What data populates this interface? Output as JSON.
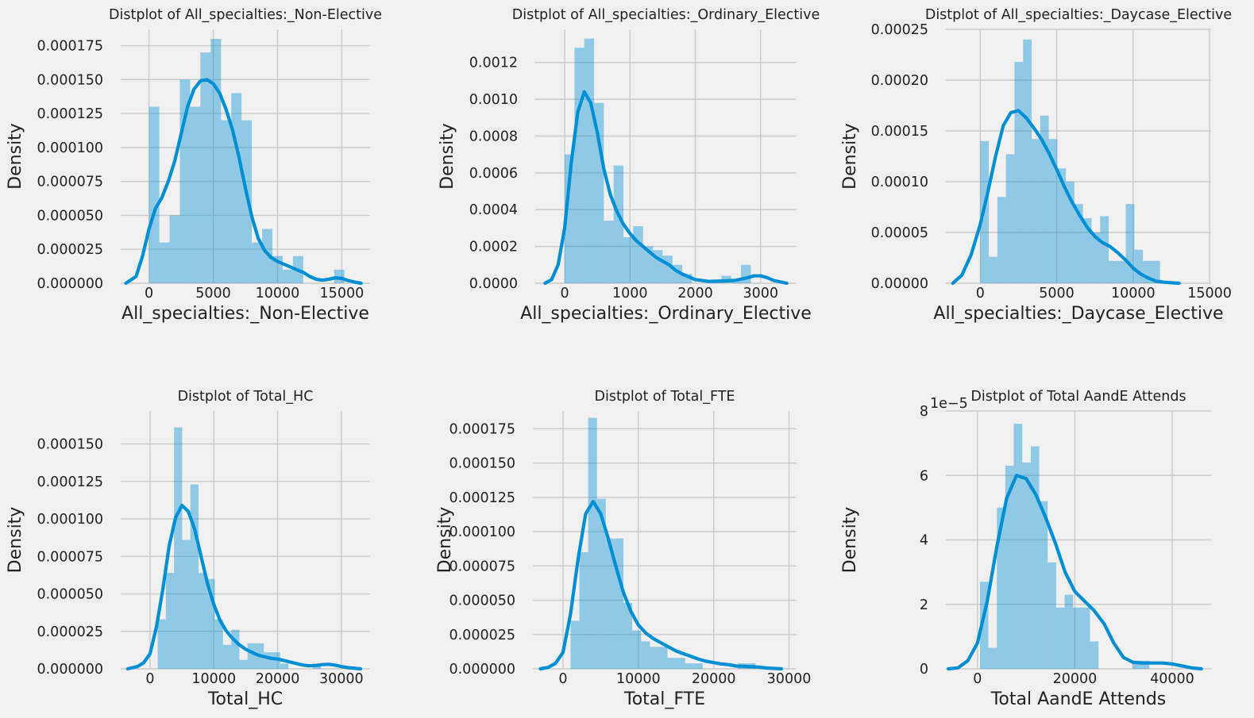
{
  "chart_data": [
    {
      "type": "histogram",
      "title": "Distplot of All_specialties:_Non-Elective",
      "xlabel": "All_specialties:_Non-Elective",
      "ylabel": "Density",
      "xlim": [
        -2200,
        17200
      ],
      "ylim": [
        0,
        0.000187
      ],
      "xticks": [
        0,
        5000,
        10000,
        15000
      ],
      "xtick_labels": [
        "0",
        "5000",
        "10000",
        "15000"
      ],
      "yticks": [
        0,
        2.5e-05,
        5e-05,
        7.5e-05,
        0.0001,
        0.000125,
        0.00015,
        0.000175
      ],
      "ytick_labels": [
        "0.000000",
        "0.000025",
        "0.000050",
        "0.000075",
        "0.000100",
        "0.000125",
        "0.000150",
        "0.000175"
      ],
      "y_offset_label": "",
      "bin_start": 0,
      "bin_width": 800,
      "values": [
        0.00013,
        3e-05,
        5e-05,
        0.00015,
        0.00013,
        0.00017,
        0.00018,
        0.00012,
        0.00014,
        0.00012,
        3e-05,
        4e-05,
        2e-05,
        1e-05,
        2e-05,
        0,
        0,
        0,
        1e-05
      ],
      "kde_x": [
        -1800,
        -1000,
        -500,
        0,
        500,
        1000,
        1500,
        2000,
        2500,
        3000,
        3500,
        4000,
        4500,
        5000,
        5500,
        6000,
        6500,
        7000,
        7500,
        8000,
        8500,
        9000,
        9500,
        10000,
        10500,
        11000,
        11500,
        12000,
        12500,
        13000,
        13500,
        14000,
        14500,
        15000,
        15500,
        16000,
        16500
      ],
      "kde_y": [
        0,
        5e-06,
        2e-05,
        4e-05,
        5.5e-05,
        6.3e-05,
        7.5e-05,
        9e-05,
        0.00011,
        0.00013,
        0.000143,
        0.000149,
        0.00015,
        0.000147,
        0.00014,
        0.000128,
        0.000113,
        9.3e-05,
        7e-05,
        4.9e-05,
        3.3e-05,
        2.4e-05,
        1.9e-05,
        1.6e-05,
        1.4e-05,
        1.2e-05,
        1e-05,
        8e-06,
        5e-06,
        3e-06,
        2.2e-06,
        3e-06,
        4e-06,
        3.5e-06,
        2e-06,
        8e-07,
        0
      ]
    },
    {
      "type": "histogram",
      "title": "Distplot of All_specialties:_Ordinary_Elective",
      "xlabel": "All_specialties:_Ordinary_Elective",
      "ylabel": "Density",
      "xlim": [
        -450,
        3550
      ],
      "ylim": [
        0,
        0.00138
      ],
      "xticks": [
        0,
        1000,
        2000,
        3000
      ],
      "xtick_labels": [
        "0",
        "1000",
        "2000",
        "3000"
      ],
      "yticks": [
        0,
        0.0002,
        0.0004,
        0.0006,
        0.0008,
        0.001,
        0.0012
      ],
      "ytick_labels": [
        "0.0000",
        "0.0002",
        "0.0004",
        "0.0006",
        "0.0008",
        "0.0010",
        "0.0012"
      ],
      "y_offset_label": "",
      "bin_start": 0,
      "bin_width": 150,
      "values": [
        0.0007,
        0.00128,
        0.00133,
        0.00098,
        0.00034,
        0.00064,
        0.00025,
        0.00031,
        0.0002,
        0.00018,
        0.00015,
        0.0001,
        5e-05,
        0,
        0,
        2e-05,
        4e-05,
        2e-05,
        0.0001
      ],
      "kde_x": [
        -300,
        -200,
        -100,
        0,
        100,
        200,
        300,
        400,
        500,
        600,
        700,
        800,
        900,
        1000,
        1100,
        1200,
        1300,
        1400,
        1500,
        1600,
        1700,
        1800,
        1900,
        2000,
        2200,
        2400,
        2600,
        2800,
        2900,
        3000,
        3100,
        3200,
        3400
      ],
      "kde_y": [
        0,
        2e-05,
        0.0001,
        0.0003,
        0.00065,
        0.00093,
        0.00104,
        0.00098,
        0.00082,
        0.00062,
        0.00048,
        0.00039,
        0.00032,
        0.00027,
        0.00023,
        0.0002,
        0.00017,
        0.00014,
        0.00012,
        0.0001,
        7e-05,
        5e-05,
        3.5e-05,
        2e-05,
        1e-05,
        1.2e-05,
        1.5e-05,
        3e-05,
        4e-05,
        4e-05,
        3e-05,
        1.5e-05,
        0
      ]
    },
    {
      "type": "histogram",
      "title": "Distplot of All_specialties:_Daycase_Elective",
      "xlabel": "All_specialties:_Daycase_Elective",
      "ylabel": "Density",
      "xlim": [
        -2250,
        15100
      ],
      "ylim": [
        0,
        0.00025
      ],
      "xticks": [
        0,
        5000,
        10000,
        15000
      ],
      "xtick_labels": [
        "0",
        "5000",
        "10000",
        "15000"
      ],
      "yticks": [
        0,
        5e-05,
        0.0001,
        0.00015,
        0.0002,
        0.00025
      ],
      "ytick_labels": [
        "0.00000",
        "0.00005",
        "0.00010",
        "0.00015",
        "0.00020",
        "0.00025"
      ],
      "y_offset_label": "",
      "bin_start": 0,
      "bin_width": 560,
      "values": [
        0.00014,
        2.6e-05,
        8.5e-05,
        0.000127,
        0.000218,
        0.00024,
        0.000142,
        0.000165,
        0.000142,
        0.000113,
        0.0001,
        7.8e-05,
        6.4e-05,
        5e-05,
        6.6e-05,
        2.2e-05,
        2.2e-05,
        7.8e-05,
        3.3e-05,
        2.2e-05,
        2.2e-05
      ],
      "kde_x": [
        -1800,
        -1200,
        -600,
        0,
        500,
        1000,
        1500,
        2000,
        2500,
        3000,
        3500,
        4000,
        4500,
        5000,
        5500,
        6000,
        6500,
        7000,
        7500,
        8000,
        8500,
        9000,
        9500,
        10000,
        10500,
        11000,
        11500,
        12000,
        13000
      ],
      "kde_y": [
        0,
        8e-06,
        2.8e-05,
        5.8e-05,
        9e-05,
        0.000125,
        0.000155,
        0.000168,
        0.00017,
        0.000163,
        0.000153,
        0.000142,
        0.000128,
        0.000112,
        9.5e-05,
        8e-05,
        6.7e-05,
        5.5e-05,
        4.6e-05,
        4e-05,
        3.6e-05,
        3e-05,
        2.3e-05,
        1.5e-05,
        9e-06,
        5e-06,
        2e-06,
        1e-06,
        0
      ]
    },
    {
      "type": "histogram",
      "title": "Distplot of Total_HC",
      "xlabel": "Total_HC",
      "ylabel": "Density",
      "xlim": [
        -4600,
        34500
      ],
      "ylim": [
        0,
        0.000172
      ],
      "xticks": [
        0,
        10000,
        20000,
        30000
      ],
      "xtick_labels": [
        "0",
        "10000",
        "20000",
        "30000"
      ],
      "yticks": [
        0,
        2.5e-05,
        5e-05,
        7.5e-05,
        0.0001,
        0.000125,
        0.00015
      ],
      "ytick_labels": [
        "0.000000",
        "0.000025",
        "0.000050",
        "0.000075",
        "0.000100",
        "0.000125",
        "0.000150"
      ],
      "y_offset_label": "",
      "bin_start": 1200,
      "bin_width": 1280,
      "values": [
        3.3e-05,
        6.4e-05,
        0.000161,
        8.6e-05,
        0.000123,
        6.4e-05,
        6e-05,
        3.3e-05,
        1.6e-05,
        2.6e-05,
        6e-06,
        1.7e-05,
        1.7e-05,
        1.1e-05,
        1.1e-05,
        3.5e-06,
        0,
        0,
        0,
        3.5e-06
      ],
      "kde_x": [
        -3500,
        -2000,
        -1000,
        0,
        1000,
        2000,
        3000,
        4000,
        5000,
        6000,
        7000,
        8000,
        9000,
        10000,
        11000,
        12000,
        13000,
        14000,
        15000,
        16000,
        17000,
        18000,
        19000,
        20000,
        21000,
        22000,
        23000,
        24000,
        25000,
        26000,
        27000,
        28000,
        29000,
        30000,
        31000,
        33000
      ],
      "kde_y": [
        0,
        1.5e-06,
        4e-06,
        1e-05,
        2.8e-05,
        5.3e-05,
        8.2e-05,
        0.000101,
        0.000109,
        0.000105,
        9.3e-05,
        7.5e-05,
        5.7e-05,
        4.3e-05,
        3.2e-05,
        2.5e-05,
        2e-05,
        1.6e-05,
        1.3e-05,
        1.1e-05,
        9e-06,
        8e-06,
        7e-06,
        6.5e-06,
        5.5e-06,
        4.5e-06,
        3.5e-06,
        2.5e-06,
        2e-06,
        2.2e-06,
        2.8e-06,
        3e-06,
        2.5e-06,
        1.5e-06,
        8e-07,
        0
      ]
    },
    {
      "type": "histogram",
      "title": "Distplot of Total_FTE",
      "xlabel": "Total_FTE",
      "ylabel": "Density",
      "xlim": [
        -4000,
        31000
      ],
      "ylim": [
        0,
        0.000188
      ],
      "xticks": [
        0,
        10000,
        20000,
        30000
      ],
      "xtick_labels": [
        "0",
        "10000",
        "20000",
        "30000"
      ],
      "yticks": [
        0,
        2.5e-05,
        5e-05,
        7.5e-05,
        0.0001,
        0.000125,
        0.00015,
        0.000175
      ],
      "ytick_labels": [
        "0.000000",
        "0.000025",
        "0.000050",
        "0.000075",
        "0.000100",
        "0.000125",
        "0.000150",
        "0.000175"
      ],
      "y_offset_label": "",
      "bin_start": 1000,
      "bin_width": 1170,
      "values": [
        3.5e-05,
        8.5e-05,
        0.000183,
        0.000124,
        9.5e-05,
        9.5e-05,
        4.8e-05,
        2.8e-05,
        2e-05,
        1.6e-05,
        1.6e-05,
        8e-06,
        8e-06,
        4e-06,
        4e-06,
        0,
        0,
        0,
        0,
        4e-06,
        4e-06
      ],
      "kde_x": [
        -3000,
        -2000,
        -1000,
        0,
        1000,
        2000,
        3000,
        4000,
        5000,
        6000,
        7000,
        8000,
        9000,
        10000,
        11000,
        12000,
        13000,
        14000,
        15000,
        16000,
        17000,
        18000,
        19000,
        20000,
        21000,
        22000,
        23000,
        24000,
        25000,
        26000,
        27000,
        29000
      ],
      "kde_y": [
        0,
        1e-06,
        4e-06,
        1.2e-05,
        4e-05,
        8e-05,
        0.000113,
        0.000122,
        0.000113,
        9.5e-05,
        7.5e-05,
        5.6e-05,
        4.2e-05,
        3.2e-05,
        2.6e-05,
        2.2e-05,
        1.9e-05,
        1.6e-05,
        1.3e-05,
        1.1e-05,
        9e-06,
        7e-06,
        5.5e-06,
        4.5e-06,
        3.5e-06,
        3e-06,
        2e-06,
        1.8e-06,
        1.5e-06,
        1.2e-06,
        6e-07,
        0
      ]
    },
    {
      "type": "histogram",
      "title": "Distplot of Total AandE Attends",
      "xlabel": "Total AandE Attends",
      "ylabel": "Density",
      "xlim": [
        -6500,
        48000
      ],
      "ylim": [
        0,
        8e-05
      ],
      "xticks": [
        0,
        20000,
        40000
      ],
      "xtick_labels": [
        "0",
        "20000",
        "40000"
      ],
      "yticks": [
        0,
        2e-05,
        4e-05,
        6e-05,
        8e-05
      ],
      "ytick_labels": [
        "0",
        "2",
        "4",
        "6",
        "8"
      ],
      "y_offset_label": "1e−5",
      "bin_start": 500,
      "bin_width": 1740,
      "values": [
        2.7e-05,
        6.5e-06,
        5e-05,
        6.3e-05,
        7.6e-05,
        6.4e-05,
        6.9e-05,
        5.2e-05,
        3.3e-05,
        1.9e-05,
        2.3e-05,
        1.9e-05,
        1.9e-05,
        8.5e-06,
        0,
        0,
        0,
        0,
        2.5e-06,
        2.5e-06
      ],
      "kde_x": [
        -6000,
        -4000,
        -2000,
        0,
        2000,
        4000,
        6000,
        8000,
        10000,
        12000,
        14000,
        16000,
        18000,
        20000,
        22000,
        24000,
        26000,
        28000,
        30000,
        32000,
        34000,
        36000,
        38000,
        40000,
        42000,
        44000,
        46000
      ],
      "kde_y": [
        0,
        3e-07,
        2.5e-06,
        8e-06,
        2.1e-05,
        3.8e-05,
        5.3e-05,
        6e-05,
        5.9e-05,
        5.4e-05,
        4.7e-05,
        3.9e-05,
        3e-05,
        2.4e-05,
        2.1e-05,
        1.8e-05,
        1.4e-05,
        8e-06,
        3.5e-06,
        2e-06,
        1.8e-06,
        1.8e-06,
        1.8e-06,
        1.5e-06,
        9e-07,
        3e-07,
        0
      ]
    }
  ]
}
